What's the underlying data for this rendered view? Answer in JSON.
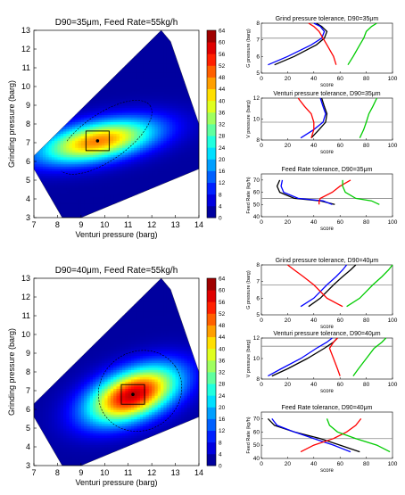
{
  "chart_data": [
    {
      "type": "heatmap",
      "title": "D90=35μm, Feed Rate=55kg/h",
      "xlabel": "Venturi pressure (barg)",
      "ylabel": "Grinding pressure (barg)",
      "xlim": [
        7,
        14
      ],
      "ylim": [
        3,
        13
      ],
      "xticks": [
        "7",
        "8",
        "9",
        "10",
        "11",
        "12",
        "13",
        "14"
      ],
      "yticks": [
        "3",
        "4",
        "5",
        "6",
        "7",
        "8",
        "9",
        "10",
        "11",
        "12",
        "13"
      ],
      "colorbar": {
        "min": 0,
        "max": 64,
        "ticks": [
          "0",
          "4",
          "8",
          "12",
          "16",
          "20",
          "24",
          "28",
          "32",
          "36",
          "40",
          "44",
          "48",
          "52",
          "56",
          "60",
          "64"
        ]
      },
      "peak": {
        "x": 9.7,
        "y": 7.1,
        "value": 46,
        "sx": 1.3,
        "sy": 0.7
      },
      "optimum_marker": {
        "x": 9.7,
        "y": 7.1
      }
    },
    {
      "type": "line",
      "title": "Grind pressure tolerance, D90=35μm",
      "xlabel": "score",
      "ylabel": "G pressure (barg)",
      "xlim": [
        0,
        100
      ],
      "ylim": [
        5,
        8
      ],
      "xticks": [
        "0",
        "20",
        "40",
        "60",
        "80",
        "100"
      ],
      "yticks": [
        "5",
        "6",
        "7",
        "8"
      ],
      "hline": 7.1,
      "series": [
        {
          "color": "#000000",
          "x": [
            10,
            25,
            42,
            48,
            50,
            46,
            42
          ],
          "y": [
            5.5,
            6.0,
            6.7,
            7.1,
            7.5,
            7.8,
            8.0
          ]
        },
        {
          "color": "#0000ff",
          "x": [
            5,
            20,
            38,
            46,
            48,
            45,
            40
          ],
          "y": [
            5.5,
            6.0,
            6.7,
            7.1,
            7.5,
            7.8,
            8.0
          ]
        },
        {
          "color": "#ff0000",
          "x": [
            57,
            55,
            50,
            47,
            44,
            40,
            36
          ],
          "y": [
            5.5,
            6.0,
            6.7,
            7.1,
            7.5,
            7.8,
            8.0
          ]
        },
        {
          "color": "#00cc00",
          "x": [
            66,
            70,
            75,
            78,
            80,
            84,
            88
          ],
          "y": [
            5.5,
            6.0,
            6.7,
            7.1,
            7.5,
            7.8,
            8.0
          ]
        }
      ]
    },
    {
      "type": "line",
      "title": "Venturi pressure tolerance, D90=35μm",
      "xlabel": "score",
      "ylabel": "V pressure (barg)",
      "xlim": [
        0,
        100
      ],
      "ylim": [
        8,
        12
      ],
      "xticks": [
        "0",
        "20",
        "40",
        "60",
        "80",
        "100"
      ],
      "yticks": [
        "8",
        "10",
        "12"
      ],
      "hline": 9.7,
      "series": [
        {
          "color": "#000000",
          "x": [
            38,
            44,
            49,
            50,
            48,
            46
          ],
          "y": [
            8.2,
            9.0,
            9.7,
            10.5,
            11.2,
            12.0
          ]
        },
        {
          "color": "#0000ff",
          "x": [
            30,
            40,
            47,
            49,
            47,
            45
          ],
          "y": [
            8.2,
            9.0,
            9.7,
            10.5,
            11.2,
            12.0
          ]
        },
        {
          "color": "#ff0000",
          "x": [
            38,
            40,
            40,
            38,
            33,
            28
          ],
          "y": [
            8.2,
            9.0,
            9.7,
            10.5,
            11.2,
            12.0
          ]
        },
        {
          "color": "#00cc00",
          "x": [
            75,
            78,
            80,
            82,
            85,
            88
          ],
          "y": [
            8.2,
            9.0,
            9.7,
            10.5,
            11.2,
            12.0
          ]
        }
      ]
    },
    {
      "type": "line",
      "title": "Feed Rate tolerance, D90=35μm",
      "xlabel": "score",
      "ylabel": "Feed Rate (kg/h)",
      "xlim": [
        0,
        100
      ],
      "ylim": [
        40,
        75
      ],
      "xticks": [
        "0",
        "20",
        "40",
        "60",
        "80",
        "100"
      ],
      "yticks": [
        "40",
        "50",
        "60",
        "70"
      ],
      "hline": 55,
      "series": [
        {
          "color": "#000000",
          "x": [
            56,
            45,
            25,
            14,
            12,
            14
          ],
          "y": [
            50,
            53,
            55,
            60,
            65,
            70
          ]
        },
        {
          "color": "#0000ff",
          "x": [
            54,
            47,
            28,
            17,
            15,
            16
          ],
          "y": [
            50,
            53,
            55,
            60,
            65,
            70
          ]
        },
        {
          "color": "#ff0000",
          "x": [
            44,
            44,
            45,
            54,
            60,
            68
          ],
          "y": [
            50,
            53,
            55,
            60,
            65,
            70
          ]
        },
        {
          "color": "#00cc00",
          "x": [
            90,
            84,
            72,
            64,
            62,
            62
          ],
          "y": [
            50,
            53,
            55,
            60,
            65,
            70
          ]
        }
      ]
    },
    {
      "type": "heatmap",
      "title": "D90=40μm, Feed Rate=55kg/h",
      "xlabel": "Venturi pressure (barg)",
      "ylabel": "Grinding pressure (barg)",
      "xlim": [
        7,
        14
      ],
      "ylim": [
        3,
        13
      ],
      "xticks": [
        "7",
        "8",
        "9",
        "10",
        "11",
        "12",
        "13",
        "14"
      ],
      "yticks": [
        "3",
        "4",
        "5",
        "6",
        "7",
        "8",
        "9",
        "10",
        "11",
        "12",
        "13"
      ],
      "colorbar": {
        "min": 0,
        "max": 64,
        "ticks": [
          "0",
          "4",
          "8",
          "12",
          "16",
          "20",
          "24",
          "28",
          "32",
          "36",
          "40",
          "44",
          "48",
          "52",
          "56",
          "60",
          "64"
        ]
      },
      "peak": {
        "x": 11.2,
        "y": 6.8,
        "value": 58,
        "sx": 1.0,
        "sy": 0.9
      },
      "optimum_marker": {
        "x": 11.2,
        "y": 6.8
      }
    },
    {
      "type": "line",
      "title": "Grind pressure tolerance, D90=40μm",
      "xlabel": "score",
      "ylabel": "G pressure (barg)",
      "xlim": [
        0,
        100
      ],
      "ylim": [
        5,
        8
      ],
      "xticks": [
        "0",
        "20",
        "40",
        "60",
        "80",
        "100"
      ],
      "yticks": [
        "5",
        "6",
        "7",
        "8"
      ],
      "hline": 6.8,
      "series": [
        {
          "color": "#000000",
          "x": [
            36,
            45,
            55,
            62,
            68,
            72
          ],
          "y": [
            5.5,
            6.0,
            6.8,
            7.3,
            7.7,
            8.0
          ]
        },
        {
          "color": "#0000ff",
          "x": [
            30,
            40,
            50,
            57,
            62,
            65
          ],
          "y": [
            5.5,
            6.0,
            6.8,
            7.3,
            7.7,
            8.0
          ]
        },
        {
          "color": "#ff0000",
          "x": [
            62,
            50,
            40,
            32,
            25,
            20
          ],
          "y": [
            5.5,
            6.0,
            6.8,
            7.3,
            7.7,
            8.0
          ]
        },
        {
          "color": "#00cc00",
          "x": [
            65,
            75,
            85,
            92,
            97,
            100
          ],
          "y": [
            5.5,
            6.0,
            6.8,
            7.3,
            7.7,
            8.0
          ]
        }
      ]
    },
    {
      "type": "line",
      "title": "Venturi pressure tolerance, D90=40μm",
      "xlabel": "score",
      "ylabel": "V pressure (barg)",
      "xlim": [
        0,
        100
      ],
      "ylim": [
        8,
        12
      ],
      "xticks": [
        "0",
        "20",
        "40",
        "60",
        "80",
        "100"
      ],
      "yticks": [
        "8",
        "10",
        "12"
      ],
      "hline": 11.2,
      "series": [
        {
          "color": "#000000",
          "x": [
            8,
            20,
            35,
            48,
            55,
            58
          ],
          "y": [
            8.3,
            9.0,
            10.0,
            11.0,
            11.6,
            12.0
          ]
        },
        {
          "color": "#0000ff",
          "x": [
            5,
            15,
            30,
            42,
            50,
            54
          ],
          "y": [
            8.3,
            9.0,
            10.0,
            11.0,
            11.6,
            12.0
          ]
        },
        {
          "color": "#ff0000",
          "x": [
            60,
            58,
            55,
            52,
            55,
            58
          ],
          "y": [
            8.3,
            9.0,
            10.0,
            11.0,
            11.6,
            12.0
          ]
        },
        {
          "color": "#00cc00",
          "x": [
            70,
            74,
            80,
            86,
            92,
            95
          ],
          "y": [
            8.3,
            9.0,
            10.0,
            11.0,
            11.6,
            12.0
          ]
        }
      ]
    },
    {
      "type": "line",
      "title": "Feed Rate tolerance, D90=40μm",
      "xlabel": "score",
      "ylabel": "Feed Rate (kg/h)",
      "xlim": [
        0,
        100
      ],
      "ylim": [
        40,
        75
      ],
      "xticks": [
        "0",
        "20",
        "40",
        "60",
        "80",
        "100"
      ],
      "yticks": [
        "40",
        "50",
        "60",
        "70"
      ],
      "hline": 55,
      "series": [
        {
          "color": "#000000",
          "x": [
            75,
            60,
            45,
            25,
            10,
            5
          ],
          "y": [
            45,
            50,
            55,
            60,
            65,
            70
          ]
        },
        {
          "color": "#0000ff",
          "x": [
            68,
            55,
            40,
            25,
            12,
            8
          ],
          "y": [
            45,
            50,
            55,
            60,
            65,
            70
          ]
        },
        {
          "color": "#ff0000",
          "x": [
            30,
            40,
            55,
            65,
            72,
            76
          ],
          "y": [
            45,
            50,
            55,
            60,
            65,
            70
          ]
        },
        {
          "color": "#00cc00",
          "x": [
            98,
            88,
            72,
            58,
            52,
            50
          ],
          "y": [
            45,
            50,
            55,
            60,
            65,
            70
          ]
        }
      ]
    }
  ]
}
